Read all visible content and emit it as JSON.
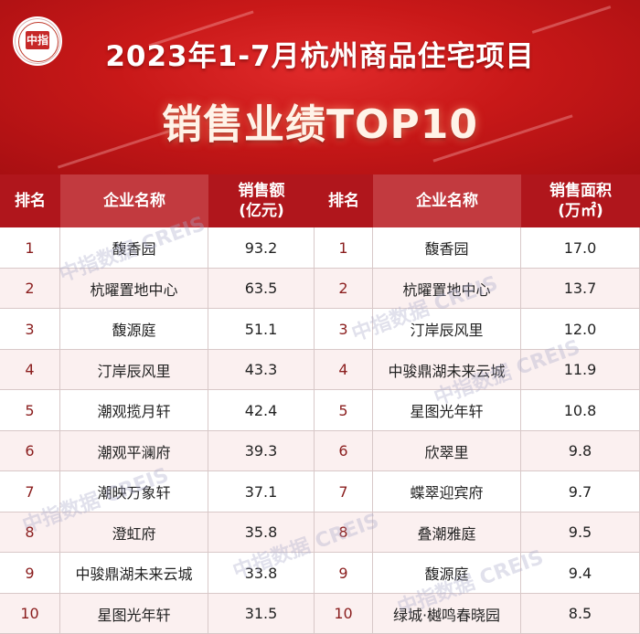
{
  "title": {
    "line1": "2023年1-7月杭州商品住宅项目",
    "line2": "销售业绩TOP10"
  },
  "logo": {
    "mark": "中指",
    "icon": "china-index-academy-logo"
  },
  "left_table": {
    "headers": {
      "rank": "排名",
      "name": "企业名称",
      "value_line1": "销售额",
      "value_line2": "(亿元)"
    },
    "rows": [
      {
        "rank": "1",
        "name": "馥香园",
        "value": "93.2"
      },
      {
        "rank": "2",
        "name": "杭曜置地中心",
        "value": "63.5"
      },
      {
        "rank": "3",
        "name": "馥源庭",
        "value": "51.1"
      },
      {
        "rank": "4",
        "name": "汀岸辰风里",
        "value": "43.3"
      },
      {
        "rank": "5",
        "name": "潮观揽月轩",
        "value": "42.4"
      },
      {
        "rank": "6",
        "name": "潮观平澜府",
        "value": "39.3"
      },
      {
        "rank": "7",
        "name": "潮映万象轩",
        "value": "37.1"
      },
      {
        "rank": "8",
        "name": "澄虹府",
        "value": "35.8"
      },
      {
        "rank": "9",
        "name": "中骏鼎湖未来云城",
        "value": "33.8"
      },
      {
        "rank": "10",
        "name": "星图光年轩",
        "value": "31.5"
      }
    ]
  },
  "right_table": {
    "headers": {
      "rank": "排名",
      "name": "企业名称",
      "value_line1": "销售面积",
      "value_line2": "(万㎡)"
    },
    "rows": [
      {
        "rank": "1",
        "name": "馥香园",
        "value": "17.0"
      },
      {
        "rank": "2",
        "name": "杭曜置地中心",
        "value": "13.7"
      },
      {
        "rank": "3",
        "name": "汀岸辰风里",
        "value": "12.0"
      },
      {
        "rank": "4",
        "name": "中骏鼎湖未来云城",
        "value": "11.9"
      },
      {
        "rank": "5",
        "name": "星图光年轩",
        "value": "10.8"
      },
      {
        "rank": "6",
        "name": "欣翠里",
        "value": "9.8"
      },
      {
        "rank": "7",
        "name": "蝶翠迎宾府",
        "value": "9.7"
      },
      {
        "rank": "8",
        "name": "叠潮雅庭",
        "value": "9.5"
      },
      {
        "rank": "9",
        "name": "馥源庭",
        "value": "9.4"
      },
      {
        "rank": "10",
        "name": "绿城·樾鸣春晓园",
        "value": "8.5"
      }
    ]
  },
  "watermark": "中指数据 CREIS",
  "colors": {
    "banner": "#c81818",
    "header_dark": "#b0161c",
    "header_light": "#c23a3f",
    "rank_text": "#8a1d1d"
  }
}
